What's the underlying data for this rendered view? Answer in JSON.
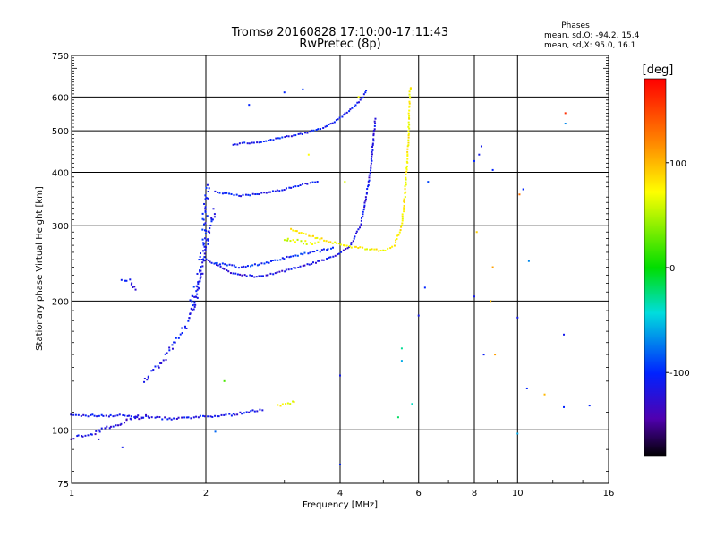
{
  "chart_data": {
    "type": "scatter",
    "title": "Tromsø 20160828 17:10:00-17:11:43",
    "subtitle": "RwPretec (8p)",
    "stats": {
      "heading": "Phases",
      "line_o": "mean, sd,O: -94.2, 15.4",
      "line_x": "mean, sd,X:  95.0, 16.1"
    },
    "xlabel": "Frequency [MHz]",
    "ylabel": "Stationary phase Virtual Height [km]",
    "x_scale": "log",
    "y_scale": "log",
    "xlim": [
      1,
      16
    ],
    "ylim": [
      75,
      750
    ],
    "x_ticks": [
      {
        "value": 1,
        "label": "1"
      },
      {
        "value": 2,
        "label": "2"
      },
      {
        "value": 4,
        "label": "4"
      },
      {
        "value": 6,
        "label": "6"
      },
      {
        "value": 8,
        "label": "8"
      },
      {
        "value": 10,
        "label": "10"
      },
      {
        "value": 16,
        "label": "16"
      }
    ],
    "y_ticks": [
      {
        "value": 75,
        "label": "75"
      },
      {
        "value": 100,
        "label": "100"
      },
      {
        "value": 200,
        "label": "200"
      },
      {
        "value": 300,
        "label": "300"
      },
      {
        "value": 400,
        "label": "400"
      },
      {
        "value": 500,
        "label": "500"
      },
      {
        "value": 600,
        "label": "600"
      },
      {
        "value": 750,
        "label": "750"
      }
    ],
    "grid": true,
    "colorbar": {
      "label": "[deg]",
      "range": [
        -180,
        180
      ],
      "ticks": [
        {
          "value": 100,
          "label": "100"
        },
        {
          "value": 0,
          "label": "0"
        },
        {
          "value": -100,
          "label": "-100"
        }
      ]
    },
    "traces": [
      {
        "phase": -112,
        "jitter": 0.012,
        "points": [
          [
            1.0,
            108
          ],
          [
            1.3,
            108
          ],
          [
            1.5,
            107
          ],
          [
            1.7,
            106
          ],
          [
            1.9,
            107
          ],
          [
            2.2,
            108
          ],
          [
            2.5,
            110
          ],
          [
            2.7,
            112
          ]
        ]
      },
      {
        "phase": -120,
        "jitter": 0.02,
        "points": [
          [
            1.0,
            96
          ],
          [
            1.1,
            97
          ],
          [
            1.2,
            101
          ],
          [
            1.35,
            106
          ],
          [
            1.5,
            108
          ]
        ]
      },
      {
        "phase": 70,
        "jitter": 0.01,
        "points": [
          [
            2.9,
            114
          ],
          [
            3.05,
            115
          ],
          [
            3.2,
            117
          ]
        ]
      },
      {
        "phase": -110,
        "jitter": 0.03,
        "points": [
          [
            1.45,
            130
          ],
          [
            1.55,
            140
          ],
          [
            1.65,
            150
          ],
          [
            1.8,
            175
          ],
          [
            1.9,
            200
          ],
          [
            1.95,
            235
          ],
          [
            2.0,
            270
          ],
          [
            2.05,
            300
          ],
          [
            2.1,
            330
          ]
        ]
      },
      {
        "phase": -105,
        "jitter": 0.04,
        "points": [
          [
            1.85,
            190
          ],
          [
            1.95,
            240
          ],
          [
            2.0,
            330
          ],
          [
            2.03,
            380
          ]
        ]
      },
      {
        "phase": -112,
        "jitter": 0.015,
        "points": [
          [
            1.3,
            225
          ],
          [
            1.35,
            224
          ],
          [
            1.4,
            210
          ]
        ]
      },
      {
        "phase": -115,
        "jitter": 0.008,
        "points": [
          [
            2.0,
            250
          ],
          [
            2.3,
            232
          ],
          [
            2.6,
            228
          ],
          [
            3.0,
            235
          ],
          [
            3.3,
            242
          ],
          [
            3.6,
            248
          ],
          [
            3.9,
            255
          ],
          [
            4.2,
            268
          ],
          [
            4.45,
            300
          ],
          [
            4.6,
            360
          ],
          [
            4.7,
            420
          ],
          [
            4.75,
            480
          ],
          [
            4.8,
            540
          ]
        ]
      },
      {
        "phase": -100,
        "jitter": 0.01,
        "points": [
          [
            2.1,
            245
          ],
          [
            2.4,
            240
          ],
          [
            2.7,
            245
          ],
          [
            3.0,
            252
          ],
          [
            3.3,
            258
          ],
          [
            3.6,
            262
          ],
          [
            3.9,
            268
          ]
        ]
      },
      {
        "phase": -108,
        "jitter": 0.008,
        "points": [
          [
            2.1,
            360
          ],
          [
            2.4,
            352
          ],
          [
            2.7,
            358
          ],
          [
            3.0,
            365
          ],
          [
            3.3,
            375
          ],
          [
            3.6,
            380
          ]
        ]
      },
      {
        "phase": -108,
        "jitter": 0.008,
        "points": [
          [
            2.3,
            465
          ],
          [
            2.6,
            470
          ],
          [
            2.9,
            480
          ],
          [
            3.3,
            492
          ],
          [
            3.7,
            510
          ],
          [
            4.0,
            535
          ],
          [
            4.3,
            570
          ],
          [
            4.5,
            600
          ],
          [
            4.6,
            630
          ]
        ]
      },
      {
        "phase": 75,
        "jitter": 0.01,
        "points": [
          [
            3.1,
            295
          ],
          [
            3.4,
            285
          ],
          [
            3.8,
            275
          ],
          [
            4.2,
            268
          ],
          [
            4.6,
            265
          ],
          [
            5.0,
            262
          ],
          [
            5.3,
            270
          ],
          [
            5.5,
            300
          ],
          [
            5.6,
            360
          ],
          [
            5.65,
            420
          ],
          [
            5.7,
            500
          ],
          [
            5.72,
            580
          ],
          [
            5.75,
            640
          ]
        ]
      },
      {
        "phase": 60,
        "jitter": 0.02,
        "points": [
          [
            3.0,
            280
          ],
          [
            3.3,
            275
          ],
          [
            3.6,
            272
          ]
        ]
      }
    ],
    "isolated_points": [
      {
        "x": 3.4,
        "y": 440,
        "phase": 70
      },
      {
        "x": 2.5,
        "y": 575,
        "phase": -100
      },
      {
        "x": 3.0,
        "y": 615,
        "phase": -100
      },
      {
        "x": 3.3,
        "y": 625,
        "phase": -95
      },
      {
        "x": 4.1,
        "y": 380,
        "phase": 60
      },
      {
        "x": 4.4,
        "y": 600,
        "phase": 70
      },
      {
        "x": 6.3,
        "y": 380,
        "phase": -90
      },
      {
        "x": 6.2,
        "y": 215,
        "phase": -100
      },
      {
        "x": 6.0,
        "y": 185,
        "phase": -110
      },
      {
        "x": 5.5,
        "y": 155,
        "phase": -30
      },
      {
        "x": 5.5,
        "y": 145,
        "phase": -60
      },
      {
        "x": 5.8,
        "y": 115,
        "phase": -40
      },
      {
        "x": 5.4,
        "y": 107,
        "phase": -20
      },
      {
        "x": 4.0,
        "y": 134,
        "phase": -110
      },
      {
        "x": 4.0,
        "y": 83,
        "phase": -100
      },
      {
        "x": 2.2,
        "y": 130,
        "phase": 20
      },
      {
        "x": 2.1,
        "y": 99,
        "phase": -80
      },
      {
        "x": 8.0,
        "y": 425,
        "phase": -100
      },
      {
        "x": 8.2,
        "y": 440,
        "phase": -110
      },
      {
        "x": 8.3,
        "y": 460,
        "phase": -110
      },
      {
        "x": 8.8,
        "y": 405,
        "phase": -100
      },
      {
        "x": 8.0,
        "y": 205,
        "phase": -110
      },
      {
        "x": 8.7,
        "y": 200,
        "phase": 100
      },
      {
        "x": 8.8,
        "y": 240,
        "phase": 110
      },
      {
        "x": 8.4,
        "y": 150,
        "phase": -105
      },
      {
        "x": 8.9,
        "y": 150,
        "phase": 110
      },
      {
        "x": 10.3,
        "y": 365,
        "phase": -100
      },
      {
        "x": 10.1,
        "y": 355,
        "phase": 130
      },
      {
        "x": 10.6,
        "y": 248,
        "phase": -70
      },
      {
        "x": 10.0,
        "y": 183,
        "phase": -110
      },
      {
        "x": 10.5,
        "y": 125,
        "phase": -100
      },
      {
        "x": 11.5,
        "y": 121,
        "phase": 100
      },
      {
        "x": 12.7,
        "y": 167,
        "phase": -110
      },
      {
        "x": 12.7,
        "y": 113,
        "phase": -100
      },
      {
        "x": 14.5,
        "y": 114,
        "phase": -100
      },
      {
        "x": 12.8,
        "y": 550,
        "phase": 160
      },
      {
        "x": 12.8,
        "y": 520,
        "phase": -70
      },
      {
        "x": 10.0,
        "y": 98,
        "phase": -60
      },
      {
        "x": 8.1,
        "y": 290,
        "phase": 90
      },
      {
        "x": 1.15,
        "y": 95,
        "phase": -120
      },
      {
        "x": 1.3,
        "y": 91,
        "phase": -110
      }
    ]
  }
}
